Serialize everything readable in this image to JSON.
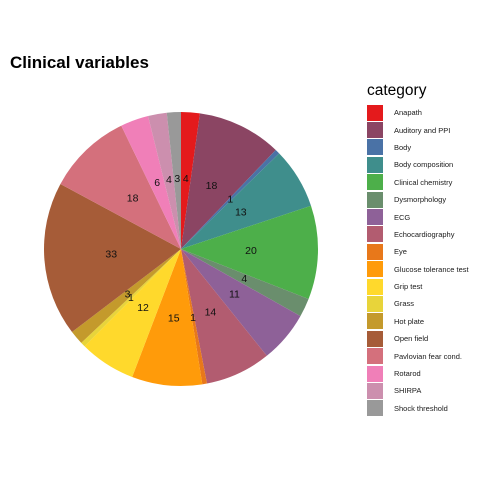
{
  "chart_data": {
    "type": "pie",
    "title": "Clinical variables",
    "legend_title": "category",
    "legend_position": "right",
    "grid": false,
    "slices": [
      {
        "label": "Anapath",
        "value": 4,
        "color": "#E41A1C"
      },
      {
        "label": "Auditory and PPI",
        "value": 18,
        "color": "#8B4563"
      },
      {
        "label": "Body",
        "value": 1,
        "color": "#4A72A6"
      },
      {
        "label": "Body composition",
        "value": 13,
        "color": "#3F8E8C"
      },
      {
        "label": "Clinical chemistry",
        "value": 20,
        "color": "#4DAF4A"
      },
      {
        "label": "Dysmorphology",
        "value": 4,
        "color": "#6A8E6D"
      },
      {
        "label": "ECG",
        "value": 11,
        "color": "#8E6198"
      },
      {
        "label": "Echocardiography",
        "value": 14,
        "color": "#B25C70"
      },
      {
        "label": "Eye",
        "value": 1,
        "color": "#E8781A"
      },
      {
        "label": "Glucose tolerance test",
        "value": 15,
        "color": "#FF9B0A"
      },
      {
        "label": "Grip test",
        "value": 12,
        "color": "#FFD92C"
      },
      {
        "label": "Grass",
        "value": 1,
        "color": "#E8D43A"
      },
      {
        "label": "Hot plate",
        "value": 3,
        "color": "#C49A2C"
      },
      {
        "label": "Open field",
        "value": 33,
        "color": "#A65C38"
      },
      {
        "label": "Pavlovian fear cond.",
        "value": 18,
        "color": "#D4707C"
      },
      {
        "label": "Rotarod",
        "value": 6,
        "color": "#F07FB8"
      },
      {
        "label": "SHIRPA",
        "value": 4,
        "color": "#CC8FAE"
      },
      {
        "label": "Shock threshold",
        "value": 3,
        "color": "#999999"
      }
    ]
  }
}
